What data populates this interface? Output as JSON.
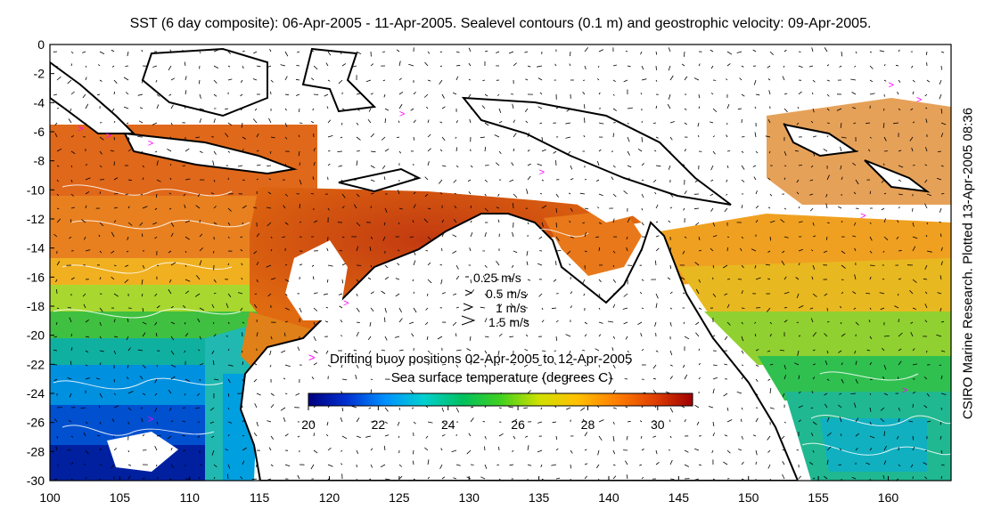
{
  "title": "SST (6 day composite): 06-Apr-2005 - 11-Apr-2005. Sealevel contours (0.1 m) and geostrophic velocity: 09-Apr-2005.",
  "side_label": "CSIRO Marine Research. Plotted 13-Apr-2005 08:36",
  "axes": {
    "x_ticks": [
      100,
      105,
      110,
      115,
      120,
      125,
      130,
      135,
      140,
      145,
      150,
      155,
      160
    ],
    "y_ticks": [
      0,
      -2,
      -4,
      -6,
      -8,
      -10,
      -12,
      -14,
      -16,
      -18,
      -20,
      -22,
      -24,
      -26,
      -28,
      -30
    ],
    "x_range": [
      100,
      164.5
    ],
    "y_range": [
      -30,
      0
    ]
  },
  "velocity_legend": [
    "0.25 m/s",
    "0.5 m/s",
    "1 m/s",
    "1.5 m/s"
  ],
  "buoy_legend": "Drifting buoy positions 02-Apr-2005 to 12-Apr-2005",
  "buoy_marker": ">",
  "buoy_color": "#ff00ff",
  "colorbar": {
    "label": "Sea surface temperature (degrees C)",
    "ticks": [
      20,
      22,
      24,
      26,
      28,
      30
    ],
    "range": [
      20,
      31
    ],
    "colors": [
      "#000080",
      "#0030d0",
      "#0090ff",
      "#00d0d0",
      "#00c060",
      "#40d020",
      "#d0e000",
      "#ffc000",
      "#ff8000",
      "#e04000",
      "#a00000"
    ]
  },
  "coastline_color": "#000000",
  "contour_color": "#ffffff"
}
